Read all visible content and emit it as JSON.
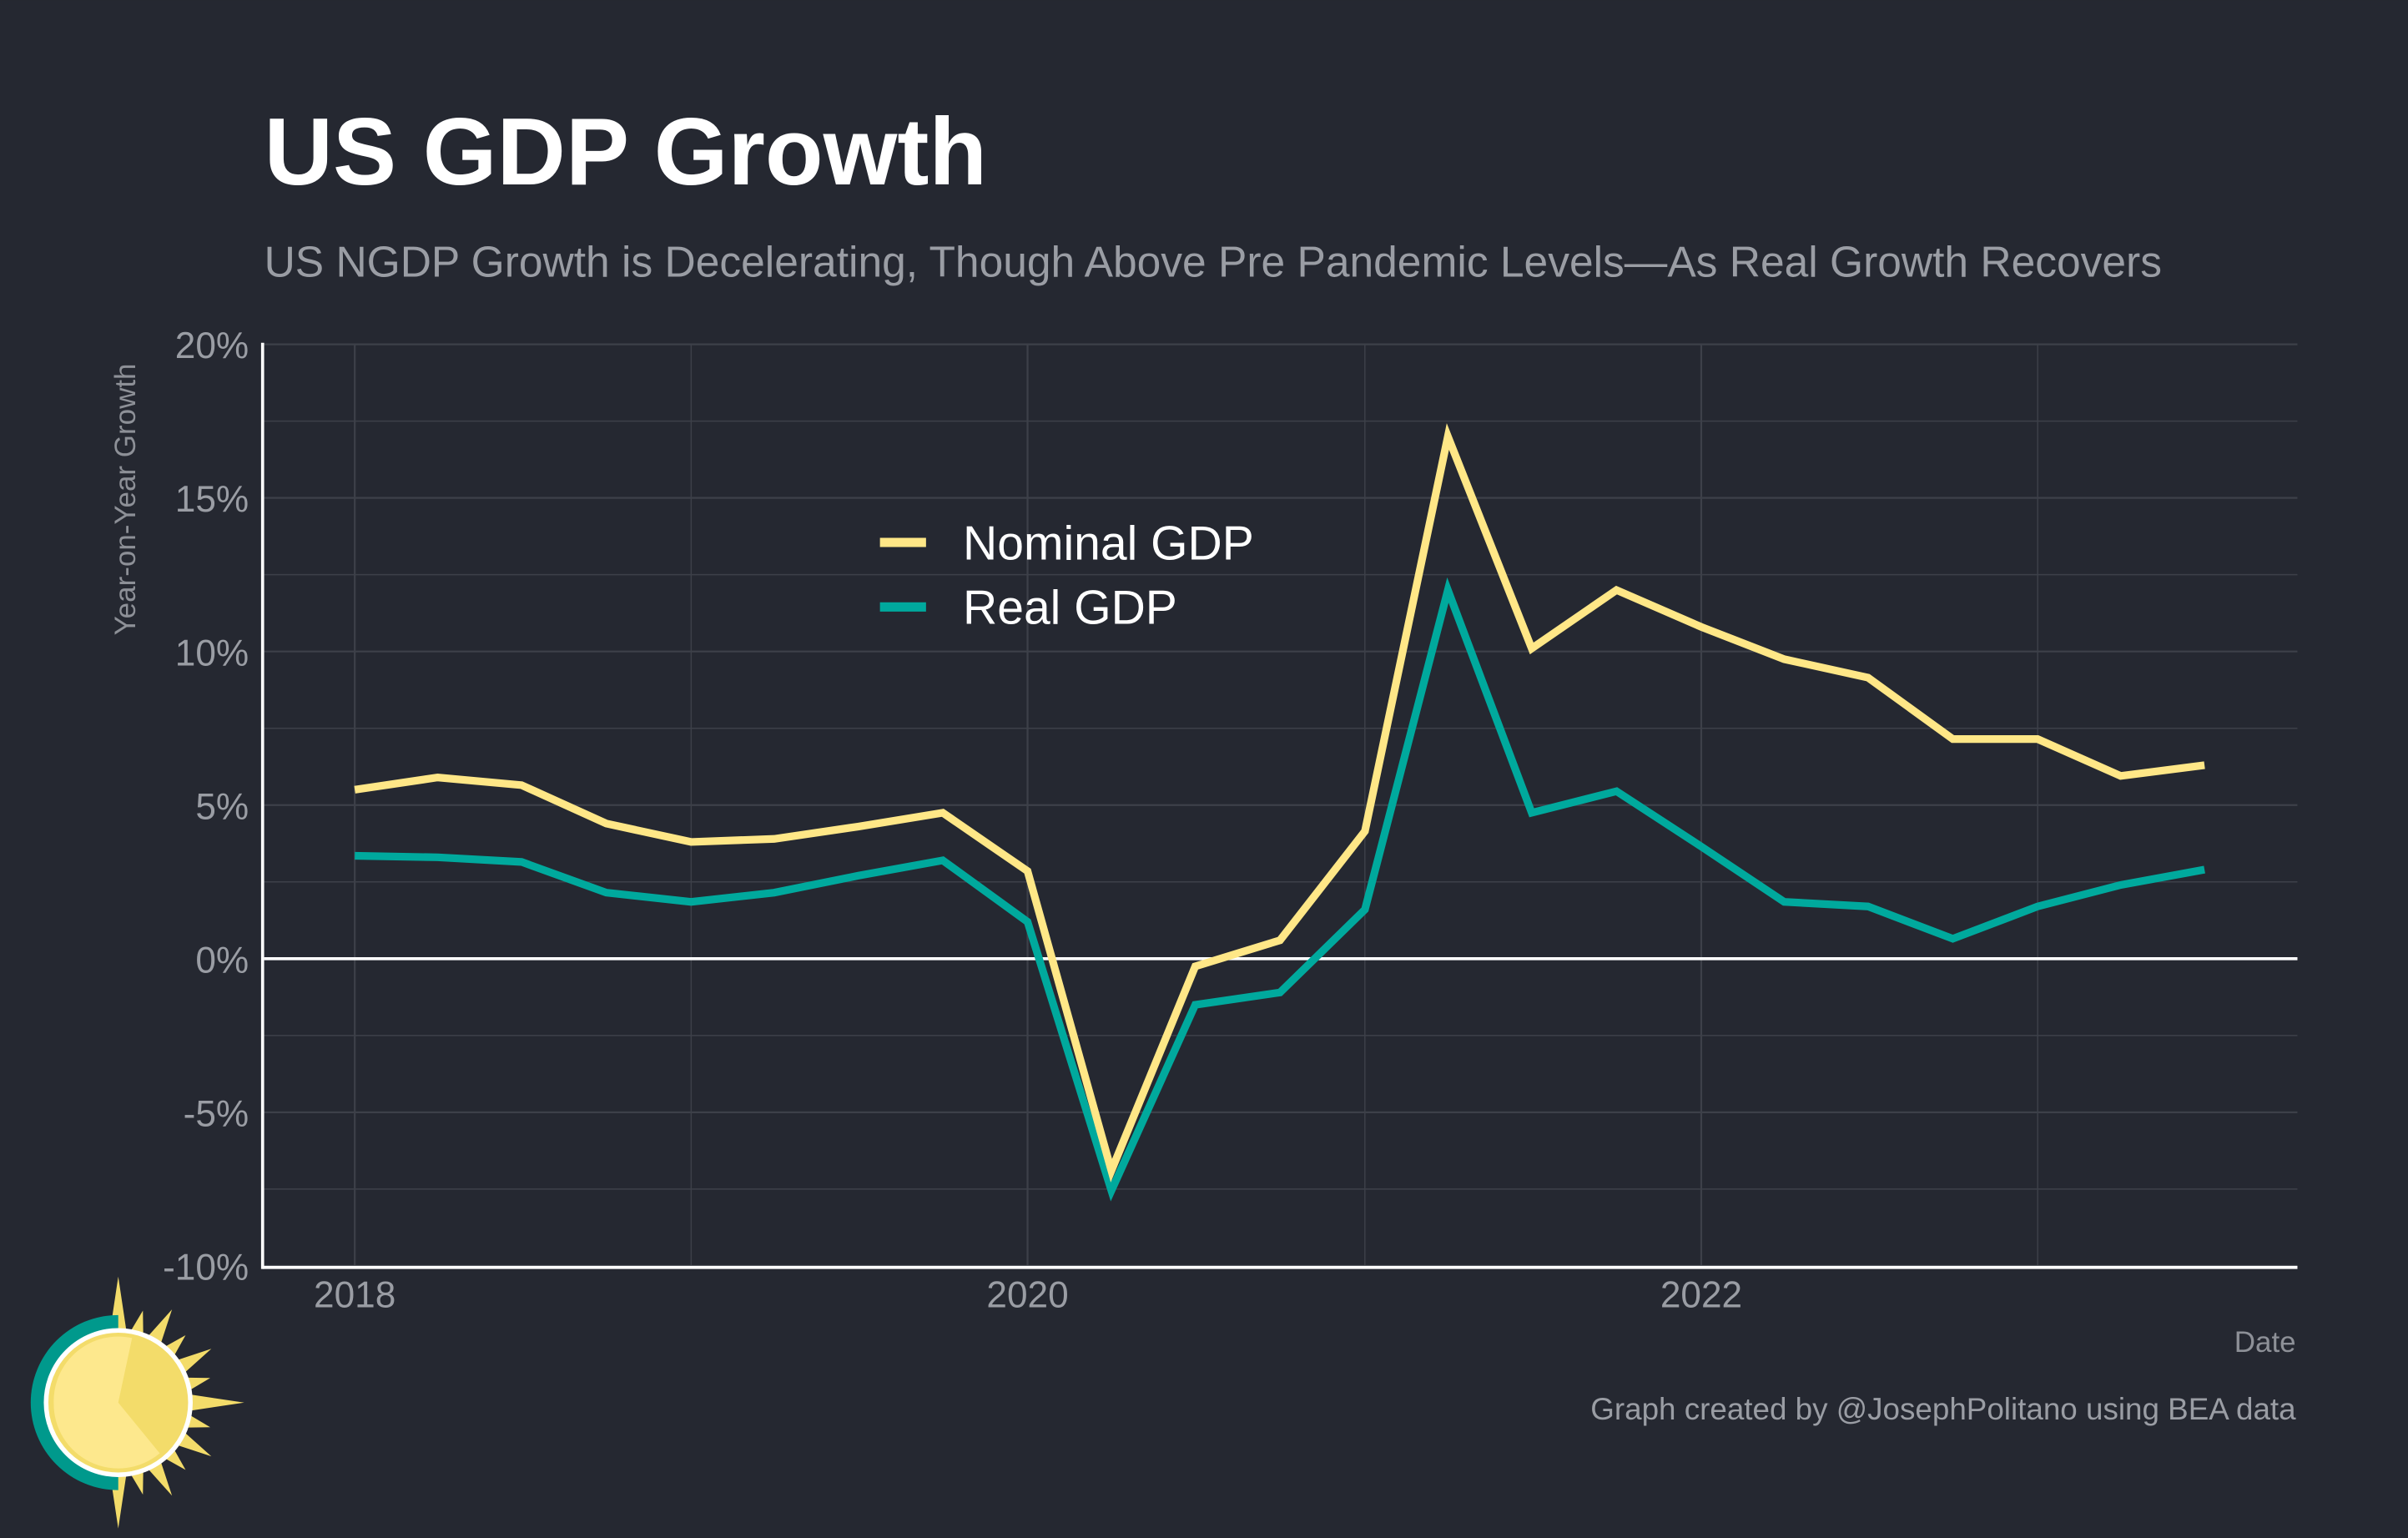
{
  "chart_data": {
    "type": "line",
    "title": "US GDP Growth",
    "subtitle": "US NGDP Growth is Decelerating, Though Above Pre Pandemic Levels—As Real Growth Recovers",
    "xlabel": "Date",
    "ylabel": "Year-on-Year Growth",
    "caption": "Graph created by @JosephPolitano using BEA data",
    "ylim": [
      -10,
      20
    ],
    "yticks": [
      -10,
      -5,
      0,
      5,
      10,
      15,
      20
    ],
    "ytick_labels": [
      "-10%",
      "-5%",
      "0%",
      "5%",
      "10%",
      "15%",
      "20%"
    ],
    "xticks": [
      "2018",
      "2020",
      "2022"
    ],
    "grid": true,
    "legend_position": "top-center",
    "x": [
      "2018-01-01",
      "2018-04-01",
      "2018-07-01",
      "2018-10-01",
      "2019-01-01",
      "2019-04-01",
      "2019-07-01",
      "2019-10-01",
      "2020-01-01",
      "2020-04-01",
      "2020-07-01",
      "2020-10-01",
      "2021-01-01",
      "2021-04-01",
      "2021-07-01",
      "2021-10-01",
      "2022-01-01",
      "2022-04-01",
      "2022-07-01",
      "2022-10-01",
      "2023-01-01",
      "2023-04-01",
      "2023-07-01"
    ],
    "series": [
      {
        "name": "Nominal GDP",
        "color": "#FFE787",
        "values": [
          5.5,
          5.9,
          5.65,
          4.4,
          3.8,
          3.9,
          4.3,
          4.75,
          2.85,
          -6.9,
          -0.25,
          0.6,
          4.15,
          17.0,
          10.1,
          12.0,
          10.8,
          9.75,
          9.15,
          7.15,
          7.15,
          5.95,
          6.3
        ]
      },
      {
        "name": "Real GDP",
        "color": "#00A99D",
        "values": [
          3.35,
          3.3,
          3.15,
          2.15,
          1.85,
          2.15,
          2.7,
          3.2,
          1.2,
          -7.55,
          -1.5,
          -1.1,
          1.6,
          12.0,
          4.75,
          5.45,
          3.65,
          1.85,
          1.7,
          0.65,
          1.7,
          2.4,
          2.9
        ]
      }
    ]
  },
  "colors": {
    "background": "#252831",
    "grid": "#3d4049",
    "zero_line": "#ffffff"
  },
  "logo": {
    "icon": "sun-icon"
  }
}
